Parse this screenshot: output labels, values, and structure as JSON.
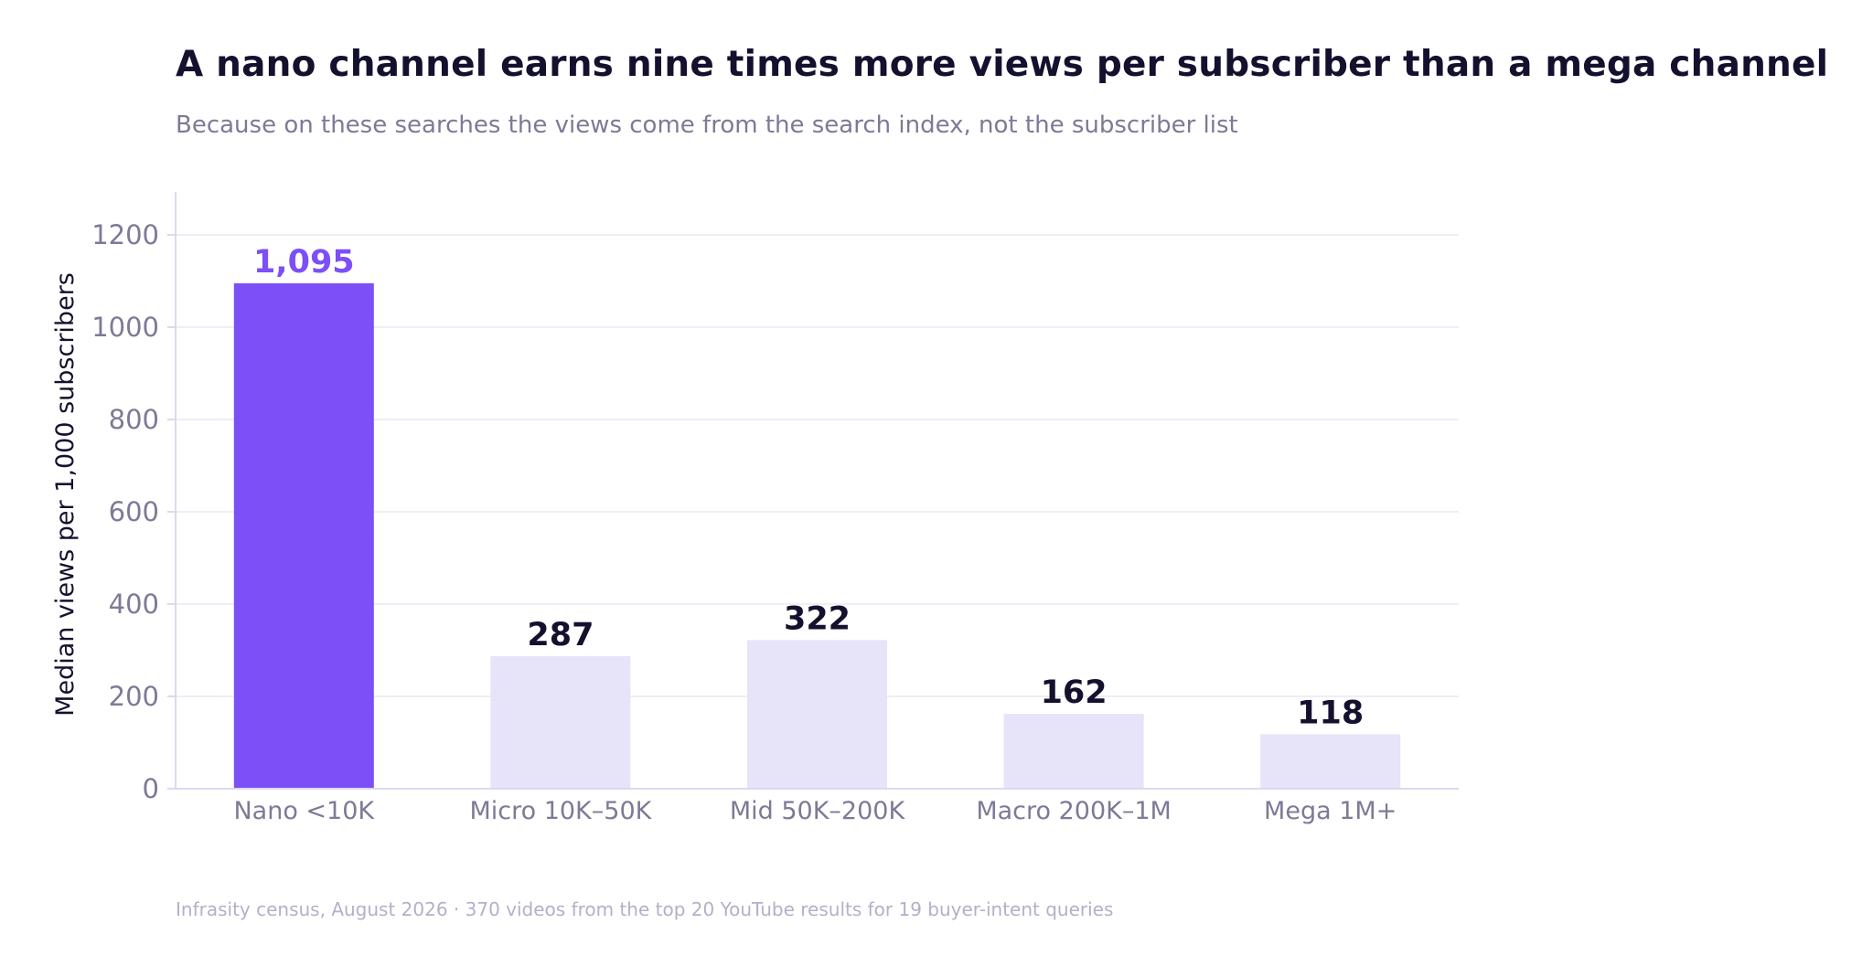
{
  "title": "A nano channel earns nine times more views per subscriber than a mega channel",
  "subtitle": "Because on these searches the views come from the search index, not the subscriber list",
  "footnote": "Infrasity census, August 2026  ·  370 videos from the top 20 YouTube results for 19 buyer-intent queries",
  "colors": {
    "highlight_bar": "#7c4ff7",
    "bar": "#e7e3f8",
    "highlight_label": "#7c4ff7",
    "label": "#14112e",
    "axis_text": "#7d7a96",
    "grid": "#efeef7",
    "axis_line": "#dcd9ee"
  },
  "chart_data": {
    "type": "bar",
    "categories": [
      "Nano <10K",
      "Micro 10K–50K",
      "Mid 50K–200K",
      "Macro 200K–1M",
      "Mega 1M+"
    ],
    "values": [
      1095,
      287,
      322,
      162,
      118
    ],
    "data_labels": [
      "1,095",
      "287",
      "322",
      "162",
      "118"
    ],
    "highlight_index": 0,
    "ylabel": "Median views per 1,000 subscribers",
    "xlabel": "",
    "ylim": [
      0,
      1300
    ],
    "yticks": [
      0,
      200,
      400,
      600,
      800,
      1000,
      1200
    ],
    "grid": true,
    "legend": "none"
  }
}
